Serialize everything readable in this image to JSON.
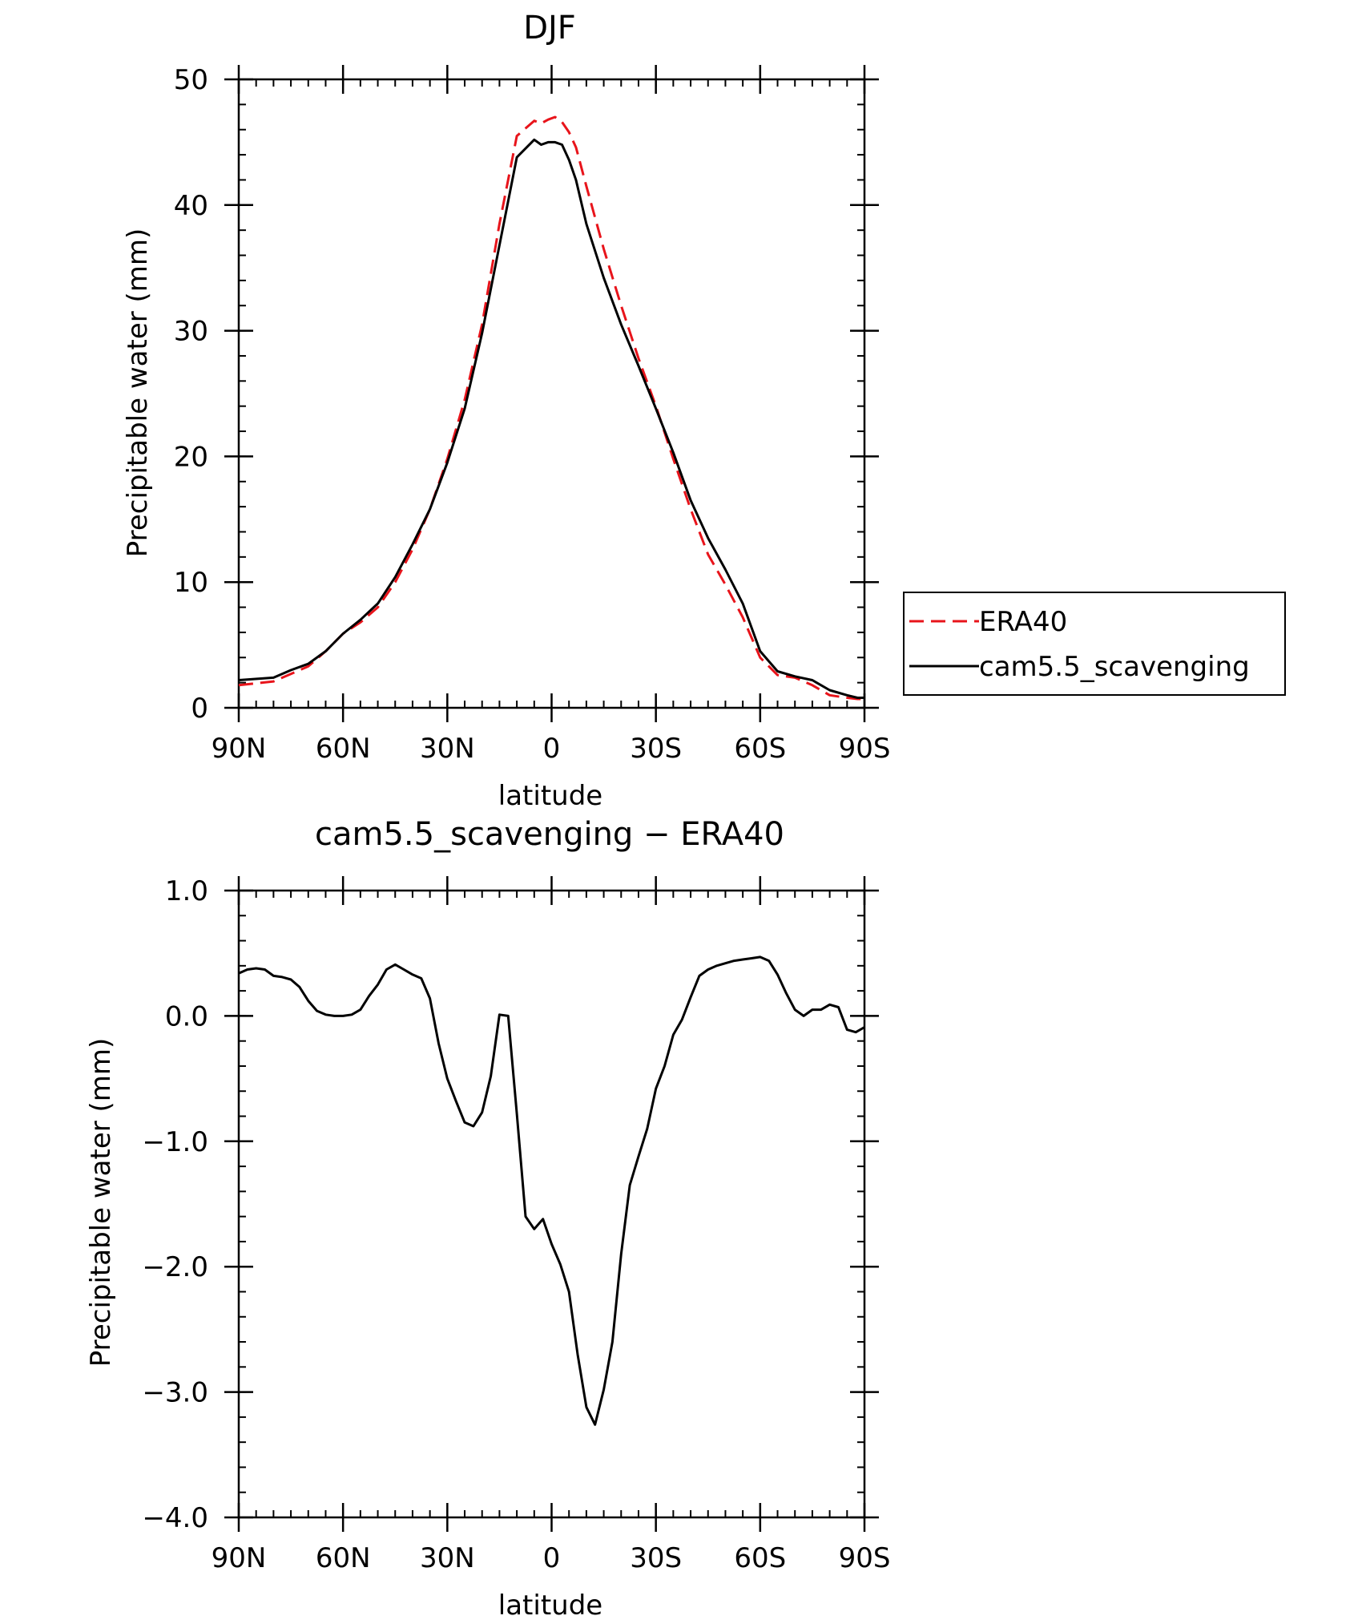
{
  "chart_data": [
    {
      "type": "line",
      "title": "DJF",
      "xlabel": "latitude",
      "ylabel": "Precipitable water (mm)",
      "xlim": [
        -90,
        90
      ],
      "ylim": [
        0,
        50
      ],
      "x_ticks": [
        {
          "value": -90,
          "label": "90N"
        },
        {
          "value": -60,
          "label": "60N"
        },
        {
          "value": -30,
          "label": "30N"
        },
        {
          "value": 0,
          "label": "0"
        },
        {
          "value": 30,
          "label": "30S"
        },
        {
          "value": 60,
          "label": "60S"
        },
        {
          "value": 90,
          "label": "90S"
        }
      ],
      "y_ticks": [
        {
          "value": 0,
          "label": "0"
        },
        {
          "value": 10,
          "label": "10"
        },
        {
          "value": 20,
          "label": "20"
        },
        {
          "value": 30,
          "label": "30"
        },
        {
          "value": 40,
          "label": "40"
        },
        {
          "value": 50,
          "label": "50"
        }
      ],
      "legend_position": "right",
      "series": [
        {
          "name": "ERA40",
          "color": "#e8141b",
          "style": "dashed",
          "x": [
            -90,
            -80,
            -75,
            -70,
            -65,
            -60,
            -55,
            -50,
            -45,
            -40,
            -35,
            -30,
            -25,
            -20,
            -15,
            -10,
            -5,
            -3,
            -1,
            1,
            3,
            5,
            7,
            10,
            15,
            20,
            25,
            30,
            35,
            40,
            45,
            50,
            55,
            60,
            65,
            70,
            75,
            80,
            85,
            88,
            90
          ],
          "y": [
            1.8,
            2.1,
            2.7,
            3.3,
            4.5,
            5.9,
            6.8,
            8.0,
            10.0,
            12.6,
            15.8,
            19.8,
            24.5,
            30.5,
            38.5,
            45.5,
            46.7,
            46.5,
            46.8,
            47.0,
            46.6,
            45.8,
            44.6,
            41.5,
            36.5,
            32.0,
            27.8,
            24.0,
            19.8,
            15.8,
            12.2,
            9.8,
            7.2,
            4.0,
            2.6,
            2.4,
            1.8,
            1.0,
            0.8,
            0.7,
            0.7
          ]
        },
        {
          "name": "cam5.5_scavenging",
          "color": "#000000",
          "style": "solid",
          "x": [
            -90,
            -80,
            -75,
            -70,
            -65,
            -60,
            -55,
            -50,
            -45,
            -40,
            -35,
            -30,
            -25,
            -20,
            -15,
            -10,
            -5,
            -3,
            -1,
            1,
            3,
            5,
            7,
            10,
            15,
            20,
            25,
            30,
            35,
            40,
            45,
            50,
            55,
            60,
            65,
            70,
            75,
            80,
            85,
            88,
            90
          ],
          "y": [
            2.2,
            2.4,
            3.0,
            3.5,
            4.5,
            5.9,
            7.0,
            8.3,
            10.4,
            13.0,
            15.8,
            19.5,
            23.8,
            29.8,
            36.8,
            43.8,
            45.2,
            44.8,
            45.0,
            45.0,
            44.8,
            43.6,
            42.0,
            38.5,
            34.2,
            30.5,
            27.2,
            23.8,
            20.3,
            16.5,
            13.5,
            11.0,
            8.3,
            4.5,
            2.9,
            2.5,
            2.2,
            1.4,
            1.0,
            0.8,
            0.8
          ]
        }
      ]
    },
    {
      "type": "line",
      "title": "cam5.5_scavenging − ERA40",
      "xlabel": "latitude",
      "ylabel": "Precipitable water (mm)",
      "xlim": [
        -90,
        90
      ],
      "ylim": [
        -4.0,
        1.0
      ],
      "x_ticks": [
        {
          "value": -90,
          "label": "90N"
        },
        {
          "value": -60,
          "label": "60N"
        },
        {
          "value": -30,
          "label": "30N"
        },
        {
          "value": 0,
          "label": "0"
        },
        {
          "value": 30,
          "label": "30S"
        },
        {
          "value": 60,
          "label": "60S"
        },
        {
          "value": 90,
          "label": "90S"
        }
      ],
      "y_ticks": [
        {
          "value": -4.0,
          "label": "−4.0"
        },
        {
          "value": -3.0,
          "label": "−3.0"
        },
        {
          "value": -2.0,
          "label": "−2.0"
        },
        {
          "value": -1.0,
          "label": "−1.0"
        },
        {
          "value": 0.0,
          "label": "0.0"
        },
        {
          "value": 1.0,
          "label": "1.0"
        }
      ],
      "series": [
        {
          "color": "#000000",
          "style": "solid",
          "x": [
            -90,
            -87.5,
            -85,
            -82.5,
            -80,
            -77.5,
            -75,
            -72.5,
            -70,
            -67.5,
            -65,
            -62.5,
            -60,
            -57.5,
            -55,
            -52.5,
            -50,
            -47.5,
            -45,
            -42.5,
            -40,
            -37.5,
            -35,
            -32.5,
            -30,
            -27.5,
            -25,
            -22.5,
            -20,
            -17.5,
            -15,
            -12.5,
            -10,
            -7.5,
            -5,
            -2.5,
            0,
            2.5,
            5,
            7.5,
            10,
            12.5,
            15,
            17.5,
            20,
            22.5,
            25,
            27.5,
            30,
            32.5,
            35,
            37.5,
            40,
            42.5,
            45,
            47.5,
            50,
            52.5,
            55,
            57.5,
            60,
            62.5,
            65,
            67.5,
            70,
            72.5,
            75,
            77.5,
            80,
            82.5,
            85,
            87.5,
            90
          ],
          "y": [
            0.34,
            0.37,
            0.38,
            0.37,
            0.32,
            0.31,
            0.29,
            0.23,
            0.12,
            0.04,
            0.01,
            0.0,
            0.0,
            0.01,
            0.05,
            0.16,
            0.25,
            0.37,
            0.41,
            0.37,
            0.33,
            0.3,
            0.14,
            -0.22,
            -0.5,
            -0.68,
            -0.85,
            -0.88,
            -0.77,
            -0.48,
            0.01,
            0.0,
            -0.78,
            -1.6,
            -1.7,
            -1.62,
            -1.82,
            -1.98,
            -2.2,
            -2.7,
            -3.12,
            -3.26,
            -2.98,
            -2.6,
            -1.9,
            -1.35,
            -1.12,
            -0.9,
            -0.58,
            -0.4,
            -0.15,
            -0.03,
            0.15,
            0.32,
            0.37,
            0.4,
            0.42,
            0.44,
            0.45,
            0.46,
            0.47,
            0.44,
            0.33,
            0.18,
            0.05,
            0.0,
            0.05,
            0.05,
            0.09,
            0.07,
            -0.11,
            -0.13,
            -0.09
          ]
        }
      ]
    }
  ]
}
